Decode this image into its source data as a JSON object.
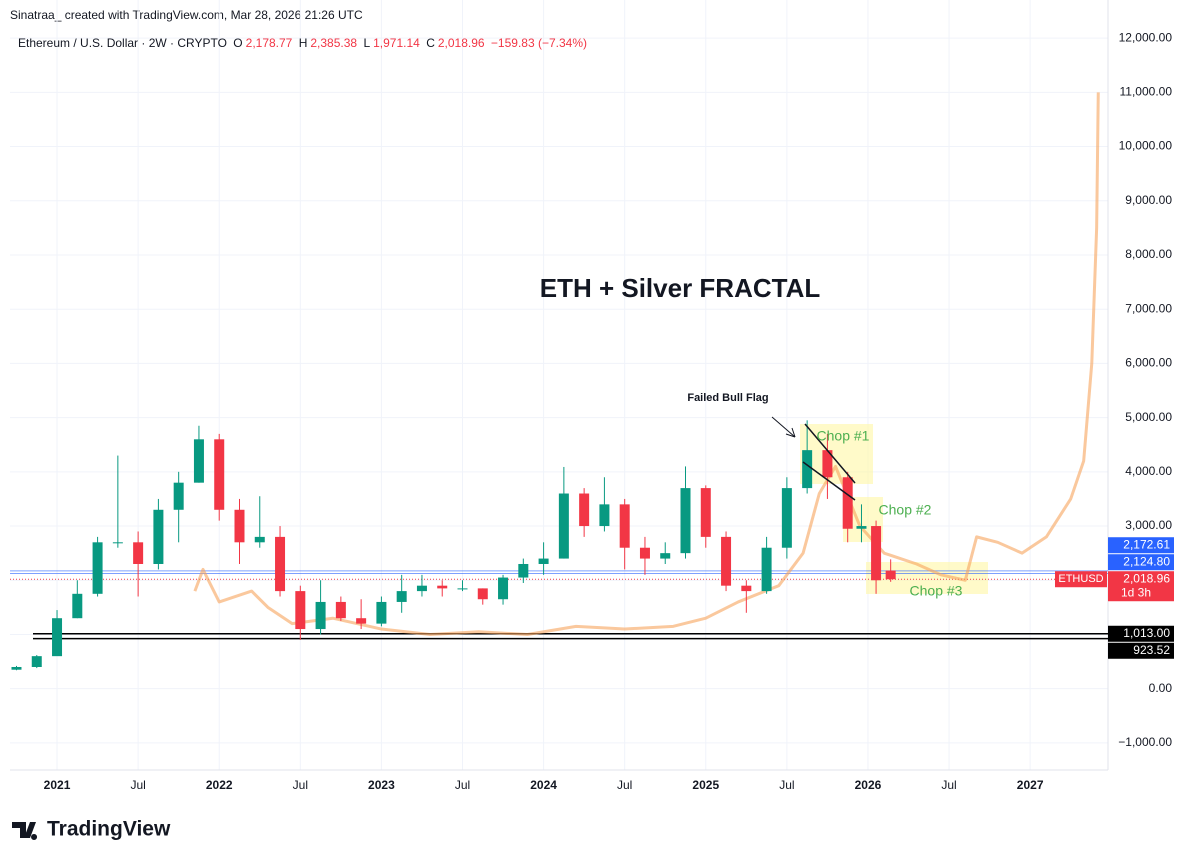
{
  "chart_data": {
    "type": "candlestick",
    "attribution": "Sinatraa_ created with TradingView.com, Mar 28, 2026 21:26 UTC",
    "legend": {
      "symbol": "Ethereum / U.S. Dollar · 2W · CRYPTO",
      "o_label": "O",
      "o": "2,178.77",
      "h_label": "H",
      "h": "2,385.38",
      "l_label": "L",
      "l": "1,971.14",
      "c_label": "C",
      "c": "2,018.96",
      "change": "−159.83 (−7.34%)"
    },
    "title": "ETH + Silver FRACTAL",
    "annotations": [
      "Failed Bull Flag",
      "Chop #1",
      "Chop #2",
      "Chop #3"
    ],
    "logo": "TradingView",
    "xlim": [
      2020.71,
      2027.48
    ],
    "ylim": [
      -1500,
      12150
    ],
    "grid": true,
    "up_color": "#089981",
    "down_color": "#f23645",
    "xticks": [
      {
        "value": 2021,
        "label": "2021"
      },
      {
        "value": 2021.5,
        "label": "Jul"
      },
      {
        "value": 2022,
        "label": "2022"
      },
      {
        "value": 2022.5,
        "label": "Jul"
      },
      {
        "value": 2023,
        "label": "2023"
      },
      {
        "value": 2023.5,
        "label": "Jul"
      },
      {
        "value": 2024,
        "label": "2024"
      },
      {
        "value": 2024.5,
        "label": "Jul"
      },
      {
        "value": 2025,
        "label": "2025"
      },
      {
        "value": 2025.5,
        "label": "Jul"
      },
      {
        "value": 2026,
        "label": "2026"
      },
      {
        "value": 2026.5,
        "label": "Jul"
      },
      {
        "value": 2027,
        "label": "2027"
      }
    ],
    "yticks": [
      {
        "value": -1000,
        "label": "−1,000.00"
      },
      {
        "value": 0,
        "label": "0.00"
      },
      {
        "value": 1000,
        "label": "1,000.00"
      },
      {
        "value": 2000,
        "label": "2,000.00"
      },
      {
        "value": 3000,
        "label": "3,000.00"
      },
      {
        "value": 4000,
        "label": "4,000.00"
      },
      {
        "value": 5000,
        "label": "5,000.00"
      },
      {
        "value": 6000,
        "label": "6,000.00"
      },
      {
        "value": 7000,
        "label": "7,000.00"
      },
      {
        "value": 8000,
        "label": "8,000.00"
      },
      {
        "value": 9000,
        "label": "9,000.00"
      },
      {
        "value": 10000,
        "label": "10,000.00"
      },
      {
        "value": 11000,
        "label": "11,000.00"
      },
      {
        "value": 12000,
        "label": "12,000.00"
      }
    ],
    "candles": {
      "x": [
        2020.75,
        2020.875,
        2021.0,
        2021.125,
        2021.25,
        2021.375,
        2021.5,
        2021.625,
        2021.75,
        2021.875,
        2022.0,
        2022.125,
        2022.25,
        2022.375,
        2022.5,
        2022.625,
        2022.75,
        2022.875,
        2023.0,
        2023.125,
        2023.25,
        2023.375,
        2023.5,
        2023.625,
        2023.75,
        2023.875,
        2024.0,
        2024.125,
        2024.25,
        2024.375,
        2024.5,
        2024.625,
        2024.75,
        2024.875,
        2025.0,
        2025.125,
        2025.25,
        2025.375,
        2025.5,
        2025.625,
        2025.75,
        2025.875,
        2025.96,
        2026.05,
        2026.14
      ],
      "open": [
        350,
        400,
        600,
        1300,
        1750,
        2700,
        2700,
        2300,
        3300,
        3800,
        4600,
        3300,
        2700,
        2800,
        1800,
        1100,
        1600,
        1300,
        1200,
        1600,
        1800,
        1900,
        1850,
        1850,
        1650,
        2050,
        2300,
        2400,
        3600,
        3000,
        3400,
        2600,
        2400,
        2500,
        3700,
        2800,
        1900,
        1800,
        2600,
        3700,
        4400,
        3900,
        2950,
        3000,
        2178.77
      ],
      "high": [
        420,
        620,
        1450,
        2000,
        2800,
        4300,
        2900,
        3500,
        4000,
        4850,
        4700,
        3500,
        3550,
        3000,
        1900,
        2000,
        1700,
        1650,
        1700,
        2100,
        2100,
        2000,
        2000,
        1850,
        2100,
        2400,
        2700,
        4090,
        3700,
        3900,
        3500,
        2800,
        2700,
        4100,
        3750,
        2900,
        2000,
        2800,
        3900,
        4950,
        4700,
        4000,
        3400,
        3100,
        2385.38
      ],
      "low": [
        340,
        380,
        700,
        1300,
        1700,
        2600,
        1700,
        2200,
        2700,
        3800,
        3100,
        2300,
        2600,
        1700,
        900,
        1000,
        1250,
        1100,
        1150,
        1400,
        1700,
        1700,
        1800,
        1550,
        1550,
        1950,
        2100,
        2400,
        2800,
        2900,
        2200,
        2100,
        2300,
        2400,
        2600,
        1800,
        1400,
        1750,
        2400,
        3600,
        3500,
        2700,
        2700,
        1750,
        1971.14
      ],
      "close": [
        400,
        600,
        1300,
        1750,
        2700,
        2700,
        2300,
        3300,
        3800,
        4600,
        3300,
        2700,
        2800,
        1800,
        1100,
        1600,
        1300,
        1200,
        1600,
        1800,
        1900,
        1850,
        1850,
        1650,
        2050,
        2300,
        2400,
        3600,
        3000,
        3400,
        2600,
        2400,
        2500,
        3700,
        2800,
        1900,
        1800,
        2600,
        3700,
        4400,
        3900,
        2950,
        3000,
        2000,
        2018.96
      ]
    },
    "overlay": {
      "color": "#f7a35c",
      "x": [
        2021.85,
        2021.9,
        2022.0,
        2022.2,
        2022.3,
        2022.45,
        2022.7,
        2023.0,
        2023.3,
        2023.6,
        2023.9,
        2024.2,
        2024.5,
        2024.8,
        2025.0,
        2025.2,
        2025.45,
        2025.6,
        2025.7,
        2025.8,
        2025.95,
        2026.1,
        2026.3,
        2026.45,
        2026.6,
        2026.67,
        2026.8,
        2026.95,
        2027.1,
        2027.25,
        2027.33,
        2027.38,
        2027.41,
        2027.42
      ],
      "y": [
        1800,
        2200,
        1600,
        1800,
        1500,
        1200,
        1300,
        1100,
        1000,
        1050,
        1000,
        1150,
        1100,
        1150,
        1300,
        1600,
        1900,
        2500,
        3600,
        4100,
        3000,
        2500,
        2300,
        2100,
        2000,
        2800,
        2700,
        2500,
        2800,
        3500,
        4200,
        6000,
        8500,
        11000
      ]
    },
    "hlines": [
      {
        "value": 2172.61,
        "label": "2,172.61",
        "color": "#2962ff"
      },
      {
        "value": 2124.8,
        "label": "2,124.80",
        "color": "#2962ff"
      },
      {
        "value": 1013.0,
        "label": "1,013.00",
        "color": "#000000"
      },
      {
        "value": 923.52,
        "label": "923.52",
        "color": "#000000"
      }
    ],
    "last_price": {
      "value": 2018.96,
      "label": "2,018.96",
      "symbol": "ETHUSD",
      "countdown": "1d 3h",
      "color": "#f23645"
    }
  }
}
